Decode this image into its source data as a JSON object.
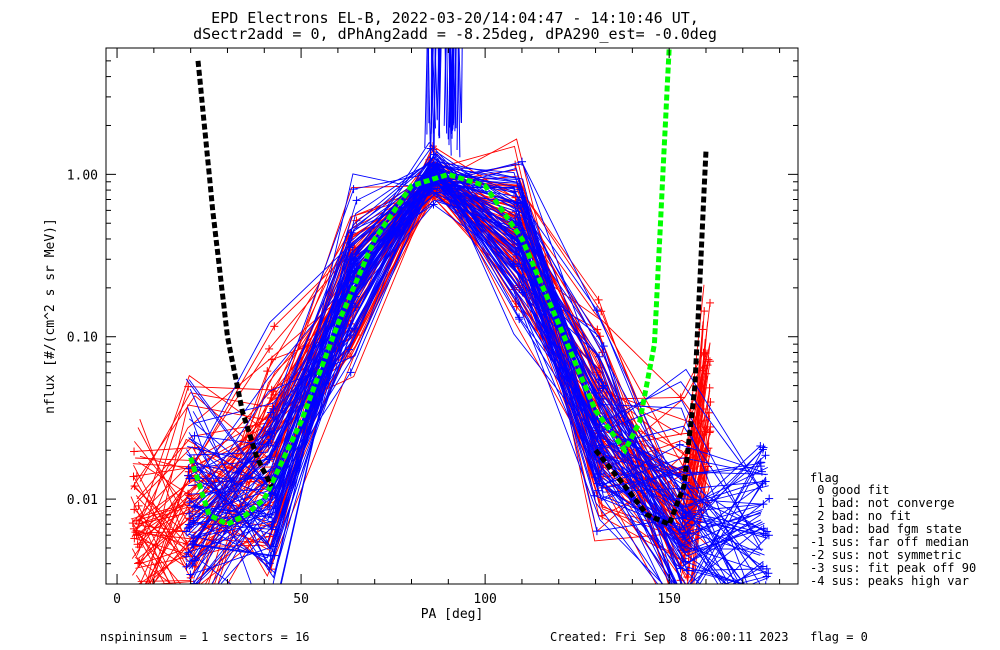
{
  "chart_data": {
    "type": "line",
    "title": "EPD Electrons EL-B, 2022-03-20/14:04:47 - 14:10:46 UT,",
    "subtitle": "dSectr2add = 0, dPhAng2add = -8.25deg, dPA290_est=  -0.0deg",
    "xlabel": "PA [deg]",
    "ylabel": "nflux [#/(cm^2 s sr MeV)]",
    "xlim": [
      -3,
      185
    ],
    "ylim": [
      0.003,
      6
    ],
    "yscale": "log",
    "x_ticks": [
      0,
      50,
      100,
      150
    ],
    "x_tick_labels": [
      "0",
      "50",
      "100",
      "150"
    ],
    "y_ticks": [
      0.01,
      0.1,
      1.0
    ],
    "y_tick_labels": [
      "0.01",
      "0.10",
      "1.00"
    ],
    "grid": false,
    "sector_pa": [
      5,
      20,
      42,
      64,
      86,
      109,
      131,
      154,
      176
    ],
    "series": [
      {
        "color": "#ff0000",
        "style": "thin lines with plus markers",
        "x": [
          5,
          20,
          42,
          64,
          86,
          109,
          131,
          154,
          160
        ],
        "y": [
          0.006,
          0.007,
          0.018,
          0.2,
          0.95,
          0.45,
          0.03,
          0.008,
          0.038
        ]
      },
      {
        "color": "#0000ff",
        "style": "thin lines with plus markers",
        "x": [
          20,
          42,
          64,
          86,
          109,
          131,
          154,
          176
        ],
        "y": [
          0.009,
          0.012,
          0.25,
          1.0,
          0.4,
          0.025,
          0.007,
          0.005
        ]
      },
      {
        "color": "#00ff00",
        "style": "thick dashed fit",
        "x": [
          20,
          25,
          30,
          35,
          40,
          50,
          60,
          70,
          80,
          90,
          100,
          110,
          120,
          130,
          138,
          142,
          146,
          150
        ],
        "y": [
          0.018,
          0.008,
          0.007,
          0.008,
          0.01,
          0.03,
          0.12,
          0.4,
          0.85,
          1.0,
          0.85,
          0.4,
          0.12,
          0.035,
          0.02,
          0.03,
          0.09,
          6
        ]
      },
      {
        "color": "#000000",
        "style": "thick dashed fit",
        "x": [
          22,
          26,
          30,
          34,
          38,
          42
        ],
        "y": [
          5,
          0.6,
          0.1,
          0.035,
          0.018,
          0.012
        ]
      },
      {
        "color": "#000000",
        "style": "thick dashed fit",
        "x": [
          130,
          138,
          144,
          150,
          154,
          157,
          160
        ],
        "y": [
          0.02,
          0.012,
          0.008,
          0.007,
          0.012,
          0.05,
          1.4
        ]
      }
    ],
    "legend": {
      "placement": "right",
      "title": "flag",
      "entries": [
        " 0 good fit",
        " 1 bad: not converge",
        " 2 bad: no fit",
        " 3 bad: bad fgm state",
        "-1 sus: far off median",
        "-2 sus: not symmetric",
        "-3 sus: fit peak off 90",
        "-4 sus: peaks high var"
      ]
    }
  },
  "footer": {
    "left": "nspininsum =  1  sectors = 16",
    "right": "Created: Fri Sep  8 06:00:11 2023   flag = 0"
  }
}
